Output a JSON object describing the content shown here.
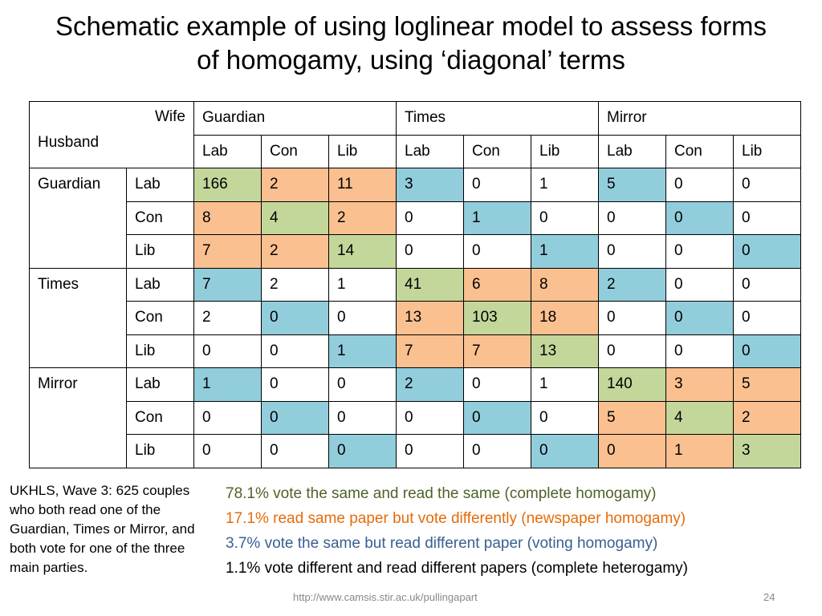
{
  "title": {
    "line1": "Schematic example of using loglinear model to assess forms",
    "line2": "of homogamy, using ‘diagonal’ terms"
  },
  "table": {
    "wife_label": "Wife",
    "husband_label": "Husband",
    "papers": [
      "Guardian",
      "Times",
      "Mirror"
    ],
    "parties": [
      "Lab",
      "Con",
      "Lib",
      "Lab",
      "Con",
      "Lib",
      "Lab",
      "Con",
      "Lib"
    ],
    "rows": [
      {
        "group": "Guardian",
        "party": "Lab",
        "cells": [
          "166",
          "2",
          "11",
          "3",
          "0",
          "1",
          "5",
          "0",
          "0"
        ]
      },
      {
        "group": "",
        "party": "Con",
        "cells": [
          "8",
          "4",
          "2",
          "0",
          "1",
          "0",
          "0",
          "0",
          "0"
        ]
      },
      {
        "group": "",
        "party": "Lib",
        "cells": [
          "7",
          "2",
          "14",
          "0",
          "0",
          "1",
          "0",
          "0",
          "0"
        ]
      },
      {
        "group": "Times",
        "party": "Lab",
        "cells": [
          "7",
          "2",
          "1",
          "41",
          "6",
          "8",
          "2",
          "0",
          "0"
        ]
      },
      {
        "group": "",
        "party": "Con",
        "cells": [
          "2",
          "0",
          "0",
          "13",
          "103",
          "18",
          "0",
          "0",
          "0"
        ]
      },
      {
        "group": "",
        "party": "Lib",
        "cells": [
          "0",
          "0",
          "1",
          "7",
          "7",
          "13",
          "0",
          "0",
          "0"
        ]
      },
      {
        "group": "Mirror",
        "party": "Lab",
        "cells": [
          "1",
          "0",
          "0",
          "2",
          "0",
          "1",
          "140",
          "3",
          "5"
        ]
      },
      {
        "group": "",
        "party": "Con",
        "cells": [
          "0",
          "0",
          "0",
          "0",
          "0",
          "0",
          "5",
          "4",
          "2"
        ]
      },
      {
        "group": "",
        "party": "Lib",
        "cells": [
          "0",
          "0",
          "0",
          "0",
          "0",
          "0",
          "0",
          "1",
          "3"
        ]
      }
    ],
    "category_colors": {
      "complete_homogamy": "#c4d79b",
      "newspaper_homogamy": "#fac090",
      "voting_homogamy": "#92cddc"
    }
  },
  "note": "UKHLS, Wave 3: 625 couples who both read one of the Guardian, Times or Mirror, and both vote for one of the three main parties.",
  "stats": [
    {
      "text": "78.1% vote the same and read the same (complete homogamy)",
      "color": "#4f6228"
    },
    {
      "text": "17.1% read same paper but vote differently (newspaper homogamy)",
      "color": "#e46c0a"
    },
    {
      "text": "3.7% vote the same but read different paper (voting homogamy)",
      "color": "#376092"
    },
    {
      "text": "1.1% vote different and read different papers (complete heterogamy)",
      "color": "#000000"
    }
  ],
  "footer": {
    "url": "http://www.camsis.stir.ac.uk/pullingapart",
    "page": "24"
  }
}
